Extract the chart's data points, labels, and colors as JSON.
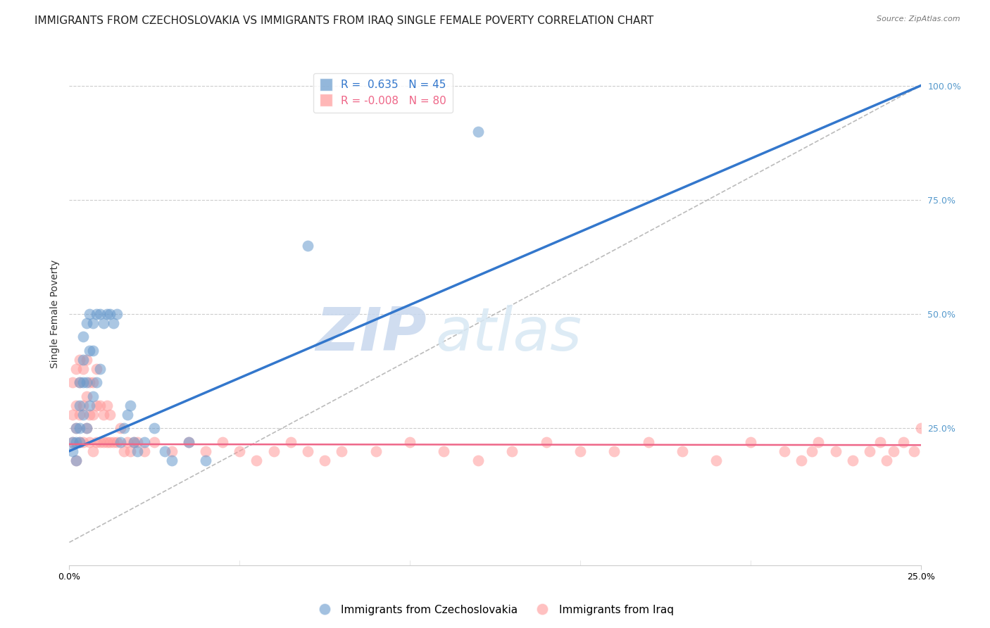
{
  "title": "IMMIGRANTS FROM CZECHOSLOVAKIA VS IMMIGRANTS FROM IRAQ SINGLE FEMALE POVERTY CORRELATION CHART",
  "source": "Source: ZipAtlas.com",
  "ylabel": "Single Female Poverty",
  "x_min": 0.0,
  "x_max": 0.25,
  "y_min": -0.05,
  "y_max": 1.05,
  "right_yticks": [
    0.25,
    0.5,
    0.75,
    1.0
  ],
  "right_yticklabels": [
    "25.0%",
    "50.0%",
    "75.0%",
    "100.0%"
  ],
  "grid_color": "#cccccc",
  "background_color": "#ffffff",
  "czech_color": "#6699CC",
  "iraq_color": "#FF9999",
  "czech_R": 0.635,
  "czech_N": 45,
  "iraq_R": -0.008,
  "iraq_N": 80,
  "legend_label_czech": "Immigrants from Czechoslovakia",
  "legend_label_iraq": "Immigrants from Iraq",
  "watermark_zip": "ZIP",
  "watermark_atlas": "atlas",
  "czech_scatter_x": [
    0.001,
    0.001,
    0.002,
    0.002,
    0.002,
    0.003,
    0.003,
    0.003,
    0.003,
    0.004,
    0.004,
    0.004,
    0.004,
    0.005,
    0.005,
    0.005,
    0.006,
    0.006,
    0.006,
    0.007,
    0.007,
    0.007,
    0.008,
    0.008,
    0.009,
    0.009,
    0.01,
    0.011,
    0.012,
    0.013,
    0.014,
    0.015,
    0.016,
    0.017,
    0.018,
    0.019,
    0.02,
    0.022,
    0.025,
    0.028,
    0.03,
    0.035,
    0.04,
    0.07,
    0.12
  ],
  "czech_scatter_y": [
    0.2,
    0.22,
    0.18,
    0.25,
    0.22,
    0.22,
    0.25,
    0.3,
    0.35,
    0.28,
    0.35,
    0.4,
    0.45,
    0.25,
    0.35,
    0.48,
    0.3,
    0.42,
    0.5,
    0.32,
    0.42,
    0.48,
    0.35,
    0.5,
    0.38,
    0.5,
    0.48,
    0.5,
    0.5,
    0.48,
    0.5,
    0.22,
    0.25,
    0.28,
    0.3,
    0.22,
    0.2,
    0.22,
    0.25,
    0.2,
    0.18,
    0.22,
    0.18,
    0.65,
    0.9
  ],
  "iraq_scatter_x": [
    0.001,
    0.001,
    0.001,
    0.002,
    0.002,
    0.002,
    0.002,
    0.003,
    0.003,
    0.003,
    0.003,
    0.004,
    0.004,
    0.004,
    0.005,
    0.005,
    0.005,
    0.006,
    0.006,
    0.006,
    0.007,
    0.007,
    0.007,
    0.008,
    0.008,
    0.008,
    0.009,
    0.009,
    0.01,
    0.01,
    0.011,
    0.011,
    0.012,
    0.012,
    0.013,
    0.014,
    0.015,
    0.016,
    0.017,
    0.018,
    0.019,
    0.02,
    0.022,
    0.025,
    0.03,
    0.035,
    0.04,
    0.045,
    0.05,
    0.055,
    0.06,
    0.065,
    0.07,
    0.075,
    0.08,
    0.09,
    0.1,
    0.11,
    0.12,
    0.13,
    0.14,
    0.15,
    0.16,
    0.17,
    0.18,
    0.19,
    0.2,
    0.21,
    0.215,
    0.218,
    0.22,
    0.225,
    0.23,
    0.235,
    0.238,
    0.24,
    0.242,
    0.245,
    0.248,
    0.25
  ],
  "iraq_scatter_y": [
    0.22,
    0.28,
    0.35,
    0.18,
    0.25,
    0.3,
    0.38,
    0.22,
    0.28,
    0.35,
    0.4,
    0.22,
    0.3,
    0.38,
    0.25,
    0.32,
    0.4,
    0.22,
    0.28,
    0.35,
    0.2,
    0.28,
    0.35,
    0.22,
    0.3,
    0.38,
    0.22,
    0.3,
    0.22,
    0.28,
    0.22,
    0.3,
    0.22,
    0.28,
    0.22,
    0.22,
    0.25,
    0.2,
    0.22,
    0.2,
    0.22,
    0.22,
    0.2,
    0.22,
    0.2,
    0.22,
    0.2,
    0.22,
    0.2,
    0.18,
    0.2,
    0.22,
    0.2,
    0.18,
    0.2,
    0.2,
    0.22,
    0.2,
    0.18,
    0.2,
    0.22,
    0.2,
    0.2,
    0.22,
    0.2,
    0.18,
    0.22,
    0.2,
    0.18,
    0.2,
    0.22,
    0.2,
    0.18,
    0.2,
    0.22,
    0.18,
    0.2,
    0.22,
    0.2,
    0.25
  ],
  "czech_trend_x": [
    0.0,
    0.25
  ],
  "czech_trend_y": [
    0.2,
    1.0
  ],
  "iraq_trend_x": [
    0.0,
    0.25
  ],
  "iraq_trend_y": [
    0.215,
    0.213
  ],
  "diag_line_x": [
    0.0,
    0.25
  ],
  "diag_line_y": [
    0.0,
    1.0
  ],
  "title_fontsize": 11,
  "axis_label_fontsize": 10,
  "tick_fontsize": 9,
  "legend_fontsize": 11
}
